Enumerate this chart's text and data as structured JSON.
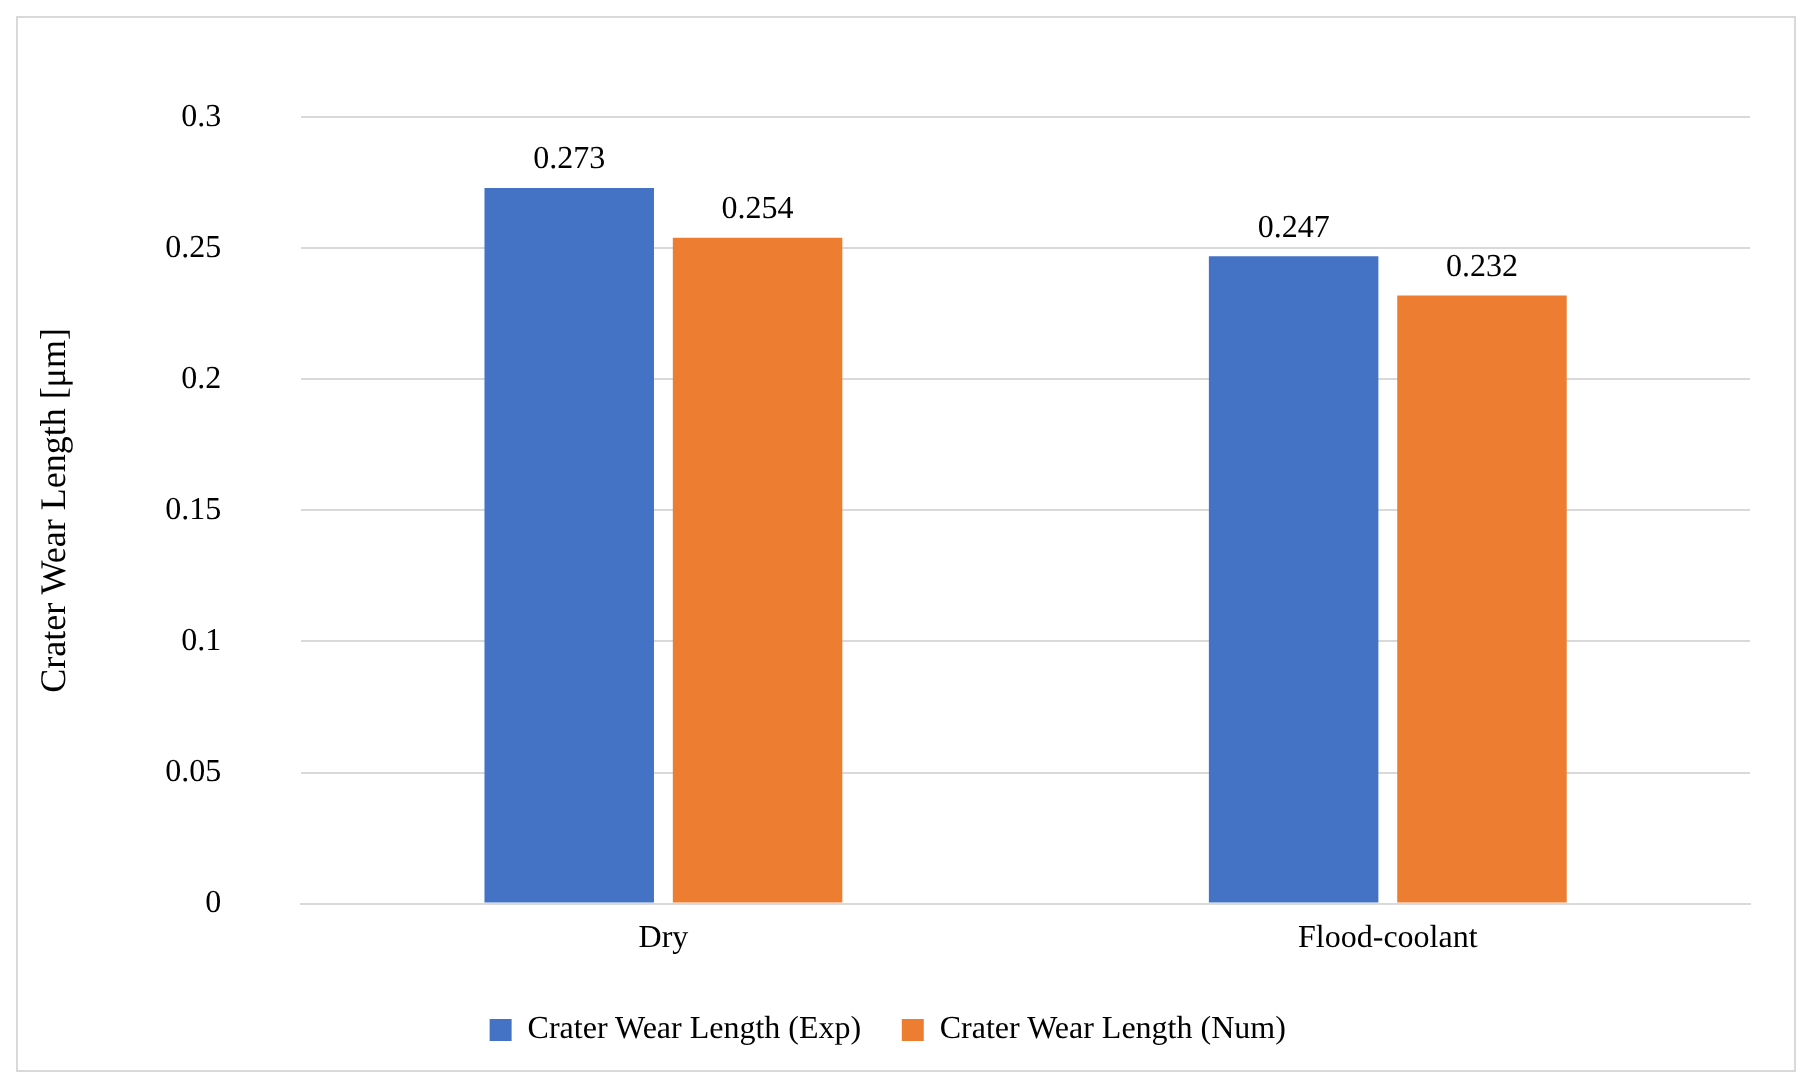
{
  "chart_data": {
    "type": "bar",
    "ylabel": "Crater Wear Length [μm]",
    "categories": [
      "Dry",
      "Flood-coolant"
    ],
    "series": [
      {
        "name": "Crater Wear Length (Exp)",
        "color": "#4472c4",
        "values": [
          0.273,
          0.247
        ]
      },
      {
        "name": "Crater Wear Length (Num)",
        "color": "#ed7d31",
        "values": [
          0.254,
          0.232
        ]
      }
    ],
    "ylim": [
      0,
      0.3
    ],
    "yticks": [
      0,
      0.05,
      0.1,
      0.15,
      0.2,
      0.25,
      0.3
    ],
    "grid": "y",
    "legend": "bottom",
    "data_labels": true
  }
}
